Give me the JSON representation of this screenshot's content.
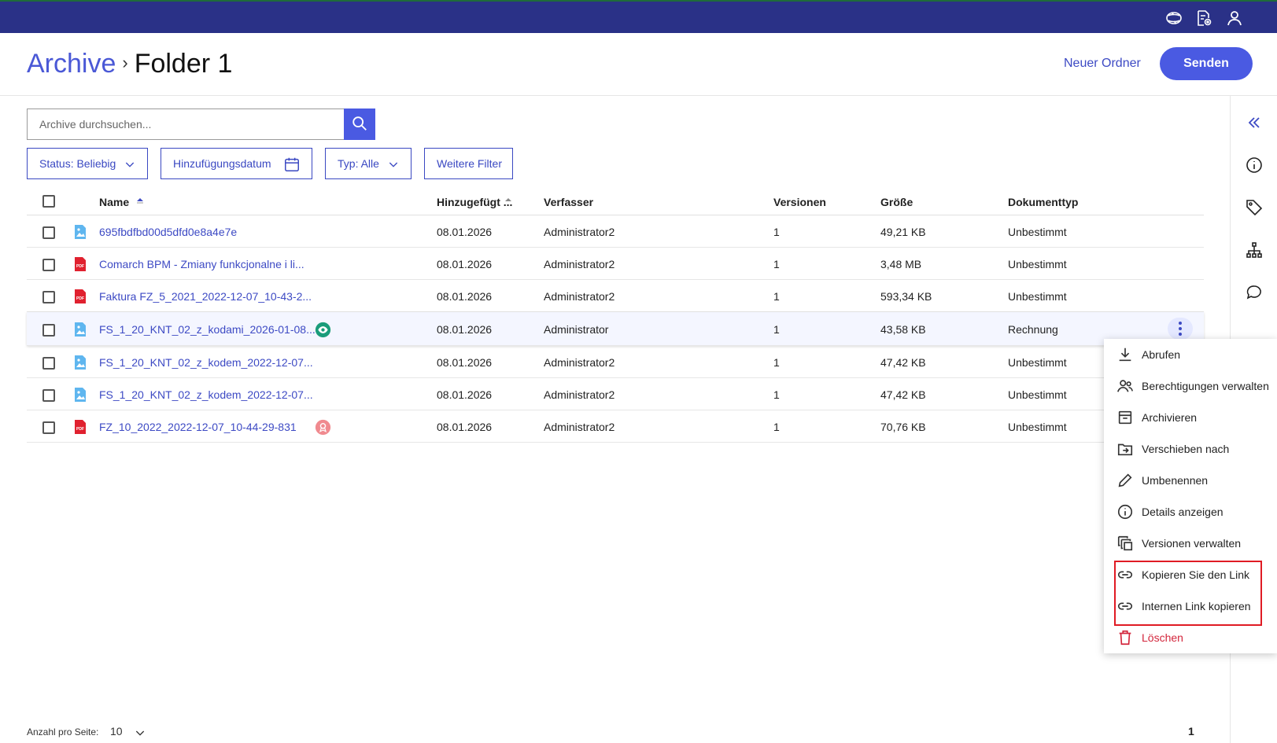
{
  "header": {
    "breadcrumb_root": "Archive",
    "breadcrumb_sep": "›",
    "breadcrumb_current": "Folder 1",
    "new_folder_label": "Neuer Ordner",
    "send_label": "Senden"
  },
  "search": {
    "placeholder": "Archive durchsuchen..."
  },
  "filters": {
    "status": "Status: Beliebig",
    "date": "Hinzufügungsdatum",
    "type": "Typ: Alle",
    "more": "Weitere Filter"
  },
  "table": {
    "columns": {
      "name": "Name",
      "added": "Hinzugefügt ...",
      "author": "Verfasser",
      "versions": "Versionen",
      "size": "Größe",
      "doctype": "Dokumenttyp"
    },
    "rows": [
      {
        "name": "695fbdfbd00d5dfd0e8a4e7e",
        "icon": "image",
        "badge": "",
        "added": "08.01.2026",
        "author": "Administrator2",
        "versions": "1",
        "size": "49,21 KB",
        "doctype": "Unbestimmt"
      },
      {
        "name": "Comarch BPM - Zmiany funkcjonalne i li...",
        "icon": "pdf",
        "badge": "",
        "added": "08.01.2026",
        "author": "Administrator2",
        "versions": "1",
        "size": "3,48 MB",
        "doctype": "Unbestimmt"
      },
      {
        "name": "Faktura FZ_5_2021_2022-12-07_10-43-2...",
        "icon": "pdf",
        "badge": "",
        "added": "08.01.2026",
        "author": "Administrator2",
        "versions": "1",
        "size": "593,34 KB",
        "doctype": "Unbestimmt"
      },
      {
        "name": "FS_1_20_KNT_02_z_kodami_2026-01-08...",
        "icon": "image",
        "badge": "eye",
        "added": "08.01.2026",
        "author": "Administrator",
        "versions": "1",
        "size": "43,58 KB",
        "doctype": "Rechnung"
      },
      {
        "name": "FS_1_20_KNT_02_z_kodem_2022-12-07...",
        "icon": "image",
        "badge": "",
        "added": "08.01.2026",
        "author": "Administrator2",
        "versions": "1",
        "size": "47,42 KB",
        "doctype": "Unbestimmt"
      },
      {
        "name": "FS_1_20_KNT_02_z_kodem_2022-12-07...",
        "icon": "image",
        "badge": "",
        "added": "08.01.2026",
        "author": "Administrator2",
        "versions": "1",
        "size": "47,42 KB",
        "doctype": "Unbestimmt"
      },
      {
        "name": "FZ_10_2022_2022-12-07_10-44-29-831",
        "icon": "pdf",
        "badge": "ribbon",
        "added": "08.01.2026",
        "author": "Administrator2",
        "versions": "1",
        "size": "70,76 KB",
        "doctype": "Unbestimmt"
      }
    ]
  },
  "context_menu": {
    "items": [
      {
        "label": "Abrufen",
        "icon": "download-icon"
      },
      {
        "label": "Berechtigungen verwalten",
        "icon": "people-icon"
      },
      {
        "label": "Archivieren",
        "icon": "archive-icon"
      },
      {
        "label": "Verschieben nach",
        "icon": "move-folder-icon"
      },
      {
        "label": "Umbenennen",
        "icon": "pencil-icon"
      },
      {
        "label": "Details anzeigen",
        "icon": "info-icon"
      },
      {
        "label": "Versionen verwalten",
        "icon": "versions-icon"
      },
      {
        "label": "Kopieren Sie den Link",
        "icon": "link-icon"
      },
      {
        "label": "Internen Link kopieren",
        "icon": "link-icon"
      },
      {
        "label": "Löschen",
        "icon": "trash-icon"
      }
    ]
  },
  "footer": {
    "per_page_label": "Anzahl pro Seite:",
    "per_page_value": "10",
    "page_number": "1"
  },
  "colors": {
    "topbar": "#2a3187",
    "accent": "#4a5ae2",
    "link": "#3d4ac4",
    "danger": "#d3263c",
    "highlight": "#e01b24"
  }
}
